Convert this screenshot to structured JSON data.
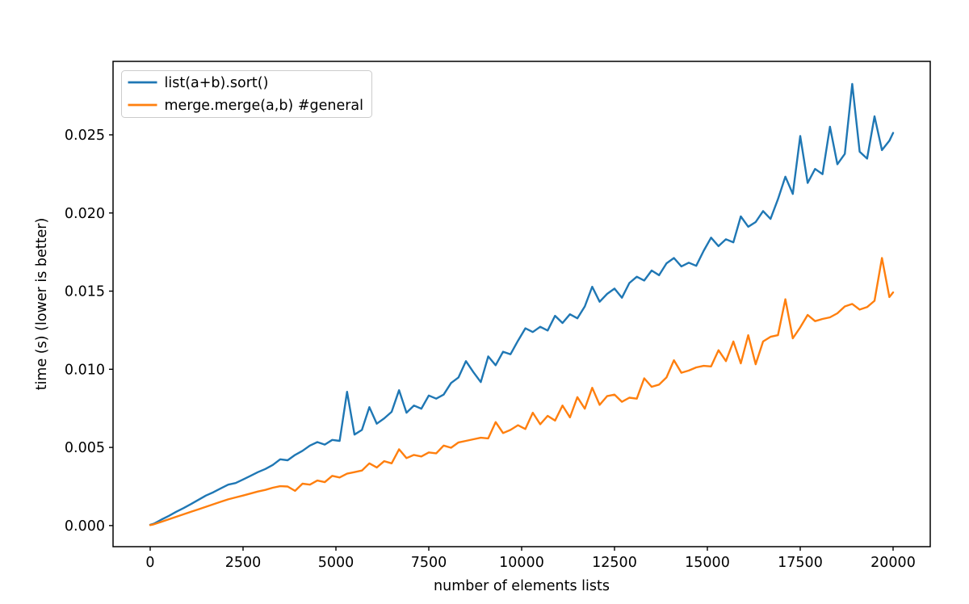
{
  "window": {
    "background": "#ffffff"
  },
  "chart_data": {
    "type": "line",
    "title": "",
    "xlabel": "number of elements lists",
    "ylabel": "time (s) (lower is better)",
    "xlim": [
      -1000,
      21000
    ],
    "ylim": [
      -0.00135,
      0.0297
    ],
    "xticks": [
      0,
      2500,
      5000,
      7500,
      10000,
      12500,
      15000,
      17500,
      20000
    ],
    "xtick_labels": [
      "0",
      "2500",
      "5000",
      "7500",
      "10000",
      "12500",
      "15000",
      "17500",
      "20000"
    ],
    "yticks": [
      0.0,
      0.005,
      0.01,
      0.015,
      0.02,
      0.025
    ],
    "ytick_labels": [
      "0.000",
      "0.005",
      "0.010",
      "0.015",
      "0.020",
      "0.025"
    ],
    "grid": false,
    "legend": {
      "position": "upper-left"
    },
    "axis_color": "#000000",
    "background": "#ffffff",
    "x": [
      0,
      100,
      300,
      500,
      700,
      900,
      1100,
      1300,
      1500,
      1700,
      1900,
      2100,
      2300,
      2500,
      2700,
      2900,
      3100,
      3300,
      3500,
      3700,
      3900,
      4100,
      4300,
      4500,
      4700,
      4900,
      5100,
      5300,
      5500,
      5700,
      5900,
      6100,
      6300,
      6500,
      6700,
      6900,
      7100,
      7300,
      7500,
      7700,
      7900,
      8100,
      8300,
      8500,
      8700,
      8900,
      9100,
      9300,
      9500,
      9700,
      9900,
      10100,
      10300,
      10500,
      10700,
      10900,
      11100,
      11300,
      11500,
      11700,
      11900,
      12100,
      12300,
      12500,
      12700,
      12900,
      13100,
      13300,
      13500,
      13700,
      13900,
      14100,
      14300,
      14500,
      14700,
      14900,
      15100,
      15300,
      15500,
      15700,
      15900,
      16100,
      16300,
      16500,
      16700,
      16900,
      17100,
      17300,
      17500,
      17700,
      17900,
      18100,
      18300,
      18500,
      18700,
      18900,
      19100,
      19300,
      19500,
      19700,
      19900,
      20000
    ],
    "series": [
      {
        "name": "list(a+b).sort()",
        "color": "#1f77b4",
        "y": [
          5e-05,
          0.00012,
          0.00038,
          0.00062,
          0.00088,
          0.00112,
          0.00138,
          0.00165,
          0.00192,
          0.00213,
          0.00238,
          0.00262,
          0.00272,
          0.00295,
          0.00318,
          0.00342,
          0.00362,
          0.00388,
          0.00424,
          0.00418,
          0.00452,
          0.00478,
          0.00512,
          0.00534,
          0.00518,
          0.00548,
          0.00542,
          0.00856,
          0.00582,
          0.00612,
          0.00758,
          0.00652,
          0.00686,
          0.00728,
          0.00866,
          0.00722,
          0.00768,
          0.00748,
          0.00832,
          0.00812,
          0.00838,
          0.00912,
          0.00948,
          0.01052,
          0.00982,
          0.00918,
          0.01082,
          0.01026,
          0.01112,
          0.01096,
          0.01182,
          0.01262,
          0.01238,
          0.01272,
          0.01248,
          0.01342,
          0.01296,
          0.01352,
          0.01326,
          0.01402,
          0.01528,
          0.01432,
          0.01482,
          0.01516,
          0.01458,
          0.01552,
          0.01592,
          0.01568,
          0.01632,
          0.01602,
          0.01678,
          0.01712,
          0.01658,
          0.01682,
          0.01662,
          0.01758,
          0.01842,
          0.01788,
          0.01832,
          0.01812,
          0.01978,
          0.01912,
          0.01942,
          0.02012,
          0.01962,
          0.02088,
          0.02232,
          0.02122,
          0.02492,
          0.02192,
          0.02282,
          0.02248,
          0.02552,
          0.02312,
          0.02378,
          0.02826,
          0.02392,
          0.02348,
          0.02618,
          0.02402,
          0.02462,
          0.02512
        ]
      },
      {
        "name": "merge.merge(a,b) #general",
        "color": "#ff7f0e",
        "y": [
          3e-05,
          8e-05,
          0.00024,
          0.0004,
          0.00056,
          0.00072,
          0.00088,
          0.00104,
          0.0012,
          0.00136,
          0.00152,
          0.00168,
          0.0018,
          0.00192,
          0.00205,
          0.00218,
          0.00228,
          0.00242,
          0.00252,
          0.0025,
          0.00222,
          0.00268,
          0.00262,
          0.00288,
          0.00278,
          0.00318,
          0.00308,
          0.00332,
          0.00342,
          0.00352,
          0.00398,
          0.00372,
          0.00412,
          0.00398,
          0.00488,
          0.00432,
          0.00452,
          0.00442,
          0.00468,
          0.00462,
          0.00512,
          0.00498,
          0.00532,
          0.00542,
          0.00552,
          0.00562,
          0.00558,
          0.00662,
          0.00592,
          0.00612,
          0.00642,
          0.00618,
          0.00722,
          0.00648,
          0.00702,
          0.00672,
          0.00768,
          0.00692,
          0.00822,
          0.00748,
          0.00882,
          0.00772,
          0.00828,
          0.00838,
          0.00792,
          0.00818,
          0.00812,
          0.00942,
          0.00888,
          0.00902,
          0.00948,
          0.01058,
          0.00978,
          0.00992,
          0.01012,
          0.01022,
          0.01018,
          0.01122,
          0.01052,
          0.01178,
          0.01038,
          0.01218,
          0.01032,
          0.01178,
          0.01208,
          0.01218,
          0.01448,
          0.01198,
          0.01268,
          0.01348,
          0.01308,
          0.01322,
          0.01332,
          0.01358,
          0.01402,
          0.01418,
          0.01382,
          0.01398,
          0.01438,
          0.01712,
          0.01462,
          0.01492
        ]
      }
    ]
  }
}
